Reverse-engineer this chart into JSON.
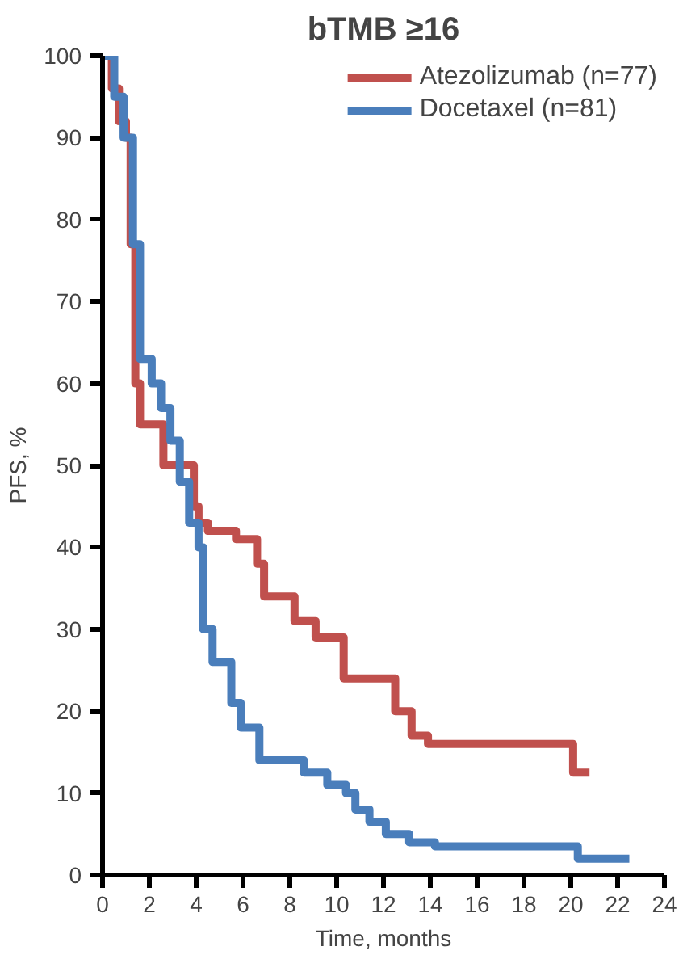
{
  "chart_data": {
    "type": "step",
    "title": "bTMB ≥16",
    "xlabel": "Time, months",
    "ylabel": "PFS, %",
    "xlim": [
      0,
      24
    ],
    "ylim": [
      0,
      100
    ],
    "xticks": [
      0,
      2,
      4,
      6,
      8,
      10,
      12,
      14,
      16,
      18,
      20,
      22,
      24
    ],
    "yticks": [
      0,
      10,
      20,
      30,
      40,
      50,
      60,
      70,
      80,
      90,
      100
    ],
    "grid": false,
    "legend": "top right",
    "series": [
      {
        "name": "Atezolizumab (n=77)",
        "color": "#c0504d",
        "x": [
          0,
          0.4,
          0.7,
          1.0,
          1.2,
          1.4,
          1.6,
          2.6,
          3.9,
          4.1,
          4.5,
          5.7,
          6.6,
          6.9,
          8.2,
          9.1,
          10.3,
          12.5,
          13.2,
          13.9,
          20.1,
          20.8
        ],
        "values": [
          100,
          96,
          92,
          90,
          77,
          60,
          55,
          50,
          45,
          43,
          42,
          41,
          38,
          34,
          31,
          29,
          24,
          20,
          17,
          16,
          12.5,
          12.5
        ]
      },
      {
        "name": "Docetaxel (n=81)",
        "color": "#4a7ebb",
        "x": [
          0,
          0.5,
          0.9,
          1.3,
          1.6,
          2.1,
          2.5,
          2.9,
          3.3,
          3.7,
          4.1,
          4.3,
          4.7,
          5.5,
          5.9,
          6.7,
          8.6,
          9.6,
          10.4,
          10.8,
          11.4,
          12.1,
          13.1,
          14.2,
          20.3,
          22.5
        ],
        "values": [
          100,
          95,
          90,
          77,
          63,
          60,
          57,
          53,
          48,
          43,
          40,
          30,
          26,
          21,
          18,
          14,
          12.5,
          11,
          10,
          8,
          6.5,
          5,
          4,
          3.5,
          2,
          2
        ]
      }
    ]
  }
}
